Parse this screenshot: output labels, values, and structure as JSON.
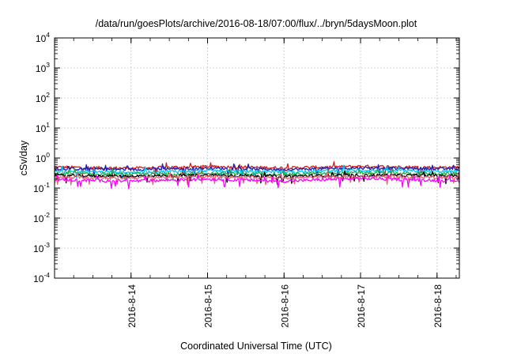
{
  "chart_data": {
    "type": "line",
    "title": "/data/run/goesPlots/archive/2016-08-18/07:00/flux/../bryn/5daysMoon.plot",
    "xlabel": "Coordinated Universal Time (UTC)",
    "ylabel": "cSv/day",
    "y_scale": "log",
    "ylim": [
      0.0001,
      10000
    ],
    "y_ticks": [
      {
        "base": "10",
        "exp": "-4",
        "value": 0.0001
      },
      {
        "base": "10",
        "exp": "-3",
        "value": 0.001
      },
      {
        "base": "10",
        "exp": "-2",
        "value": 0.01
      },
      {
        "base": "10",
        "exp": "-1",
        "value": 0.1
      },
      {
        "base": "10",
        "exp": "0",
        "value": 1
      },
      {
        "base": "10",
        "exp": "1",
        "value": 10
      },
      {
        "base": "10",
        "exp": "2",
        "value": 100
      },
      {
        "base": "10",
        "exp": "3",
        "value": 1000
      },
      {
        "base": "10",
        "exp": "4",
        "value": 10000
      }
    ],
    "xlim": [
      "2016-08-13 00:00",
      "2016-08-18 07:00"
    ],
    "x_ticks": [
      {
        "label": "2016-8-14",
        "date": "2016-08-14 00:00"
      },
      {
        "label": "2016-8-15",
        "date": "2016-08-15 00:00"
      },
      {
        "label": "2016-8-16",
        "date": "2016-08-16 00:00"
      },
      {
        "label": "2016-8-17",
        "date": "2016-08-17 00:00"
      },
      {
        "label": "2016-8-18",
        "date": "2016-08-18 00:00"
      }
    ],
    "grid": true,
    "series": [
      {
        "color": "#cc2222",
        "level": 0.5,
        "trace": [
          {
            "date": "2016-08-13 00:00",
            "value": 0.5
          },
          {
            "date": "2016-08-14 00:00",
            "value": 0.46
          },
          {
            "date": "2016-08-15 00:00",
            "value": 0.52
          },
          {
            "date": "2016-08-16 00:00",
            "value": 0.47
          },
          {
            "date": "2016-08-17 00:00",
            "value": 0.53
          },
          {
            "date": "2016-08-18 00:00",
            "value": 0.49
          }
        ]
      },
      {
        "color": "#1e1eb4",
        "level": 0.44,
        "trace": [
          {
            "date": "2016-08-13 00:00",
            "value": 0.44
          },
          {
            "date": "2016-08-14 00:00",
            "value": 0.42
          },
          {
            "date": "2016-08-15 00:00",
            "value": 0.46
          },
          {
            "date": "2016-08-16 00:00",
            "value": 0.41
          },
          {
            "date": "2016-08-17 00:00",
            "value": 0.47
          },
          {
            "date": "2016-08-18 00:00",
            "value": 0.44
          }
        ]
      },
      {
        "color": "#00c8f0",
        "level": 0.36,
        "trace": [
          {
            "date": "2016-08-13 00:00",
            "value": 0.36
          },
          {
            "date": "2016-08-14 00:00",
            "value": 0.34
          },
          {
            "date": "2016-08-15 00:00",
            "value": 0.38
          },
          {
            "date": "2016-08-16 00:00",
            "value": 0.35
          },
          {
            "date": "2016-08-17 00:00",
            "value": 0.39
          },
          {
            "date": "2016-08-18 00:00",
            "value": 0.36
          }
        ]
      },
      {
        "color": "#22aa44",
        "level": 0.3,
        "trace": [
          {
            "date": "2016-08-13 00:00",
            "value": 0.3
          },
          {
            "date": "2016-08-14 00:00",
            "value": 0.29
          },
          {
            "date": "2016-08-15 00:00",
            "value": 0.31
          },
          {
            "date": "2016-08-16 00:00",
            "value": 0.29
          },
          {
            "date": "2016-08-17 00:00",
            "value": 0.32
          },
          {
            "date": "2016-08-18 00:00",
            "value": 0.3
          }
        ]
      },
      {
        "color": "#000000",
        "level": 0.26,
        "trace": [
          {
            "date": "2016-08-13 00:00",
            "value": 0.26
          },
          {
            "date": "2016-08-14 00:00",
            "value": 0.25
          },
          {
            "date": "2016-08-15 00:00",
            "value": 0.27
          },
          {
            "date": "2016-08-16 00:00",
            "value": 0.25
          },
          {
            "date": "2016-08-17 00:00",
            "value": 0.27
          },
          {
            "date": "2016-08-18 00:00",
            "value": 0.26
          }
        ]
      },
      {
        "color": "#e8607a",
        "level": 0.23,
        "trace": [
          {
            "date": "2016-08-13 00:00",
            "value": 0.23
          },
          {
            "date": "2016-08-14 00:00",
            "value": 0.22
          },
          {
            "date": "2016-08-15 00:00",
            "value": 0.24
          },
          {
            "date": "2016-08-16 00:00",
            "value": 0.22
          },
          {
            "date": "2016-08-17 00:00",
            "value": 0.24
          },
          {
            "date": "2016-08-18 00:00",
            "value": 0.23
          }
        ]
      },
      {
        "color": "#ff00ff",
        "level": 0.19,
        "trace": [
          {
            "date": "2016-08-13 00:00",
            "value": 0.19
          },
          {
            "date": "2016-08-14 00:00",
            "value": 0.17
          },
          {
            "date": "2016-08-15 00:00",
            "value": 0.2
          },
          {
            "date": "2016-08-16 00:00",
            "value": 0.17
          },
          {
            "date": "2016-08-17 00:00",
            "value": 0.21
          },
          {
            "date": "2016-08-18 00:00",
            "value": 0.18
          }
        ]
      }
    ]
  }
}
